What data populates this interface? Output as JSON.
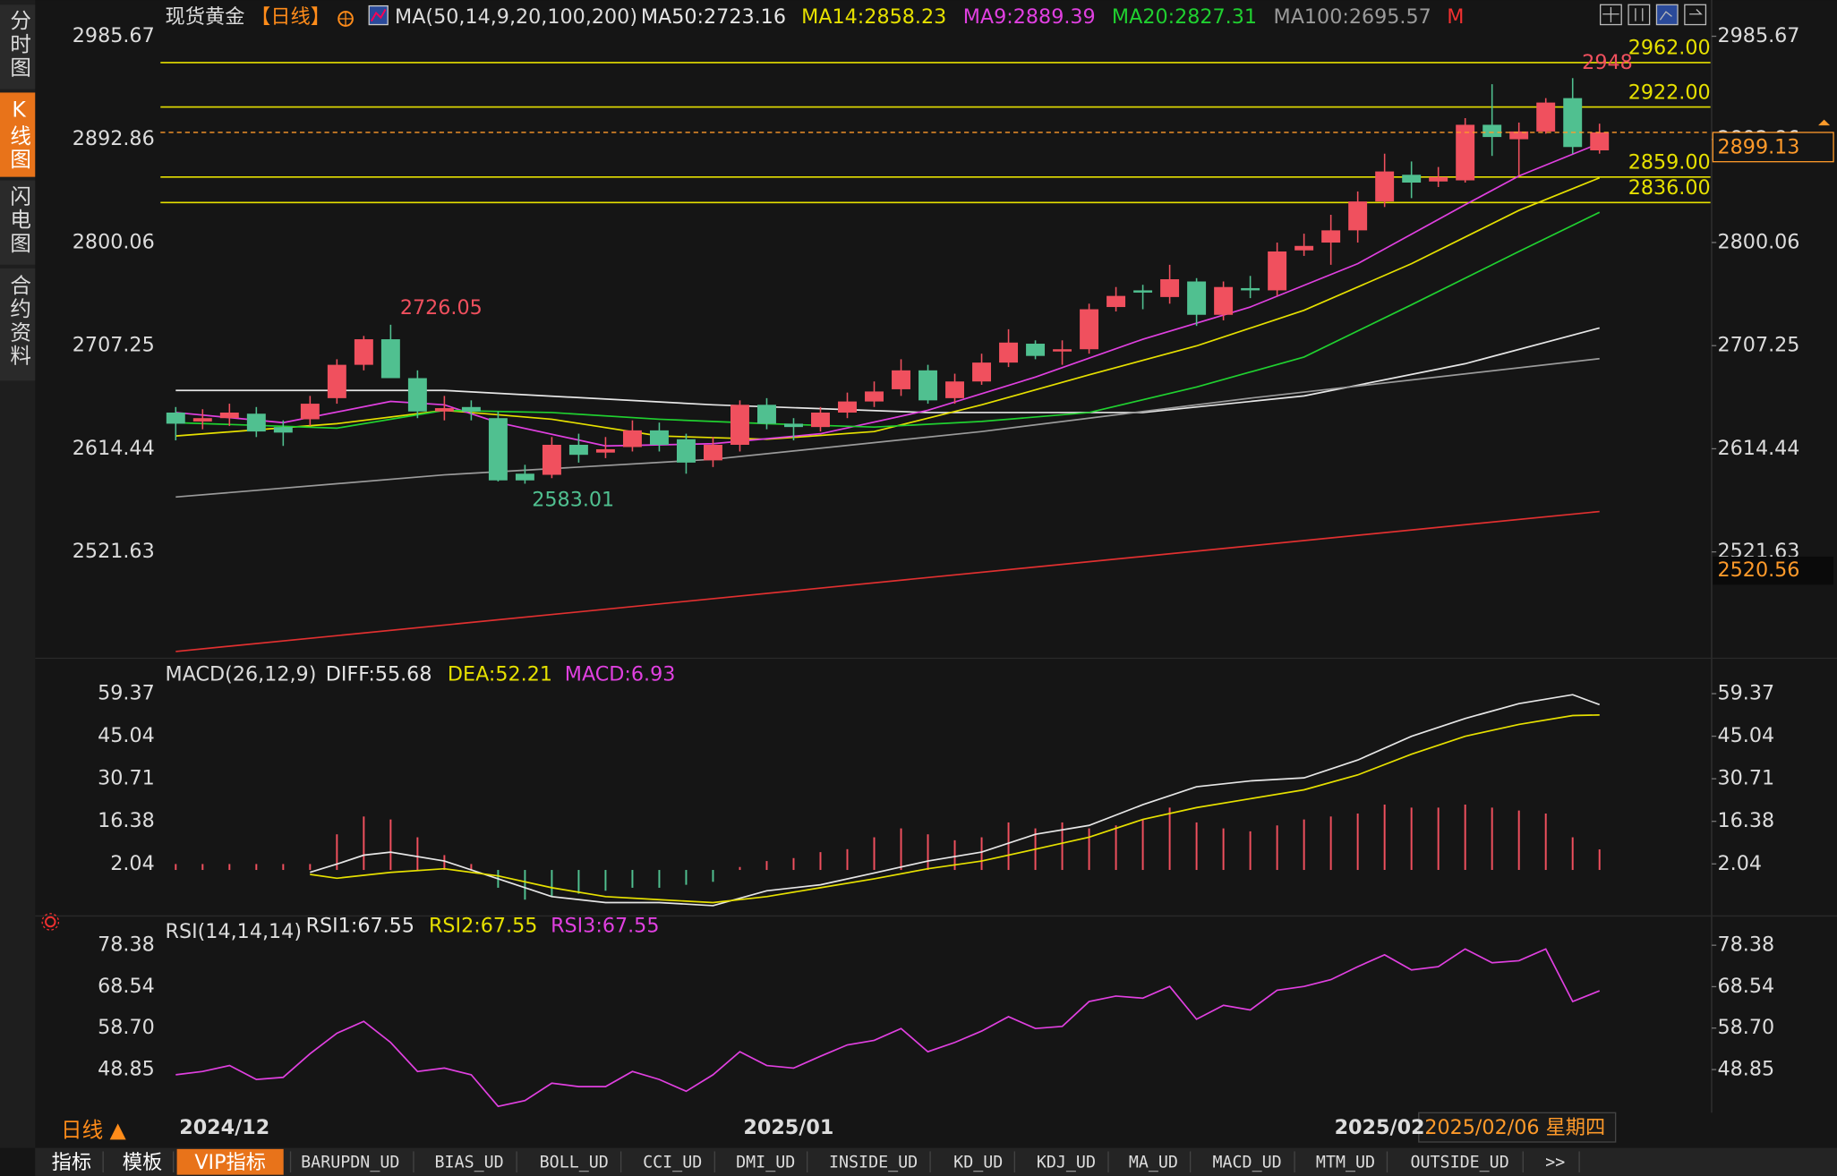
{
  "header": {
    "title": "现货黄金",
    "period": "【日线】",
    "indicator": "MA(50,14,9,20,100,200)",
    "flag": "M"
  },
  "sidebar": {
    "tabs": [
      "分时图",
      "K线图",
      "闪电图",
      "合约资料"
    ]
  },
  "footer": {
    "period": "日线 ▲",
    "crosshair_date": "2025/02/06 星期四"
  },
  "toolbar": {
    "tabs": [
      "指标",
      "模板",
      "VIP指标",
      "BARUPDN_UD",
      "BIAS_UD",
      "BOLL_UD",
      "CCI_UD",
      "DMI_UD",
      "INSIDE_UD",
      "KD_UD",
      "KDJ_UD",
      "MA_UD",
      "MACD_UD",
      "MTM_UD",
      "OUTSIDE_UD",
      ">>"
    ]
  },
  "chart_data": [
    {
      "type": "candlestick",
      "up_color": "#f0505e",
      "down_color": "#50c090",
      "categories": [
        "2024/12",
        null,
        null,
        null,
        null,
        null,
        null,
        null,
        null,
        null,
        null,
        null,
        null,
        null,
        null,
        null,
        null,
        null,
        null,
        null,
        null,
        "2025/01",
        null,
        null,
        null,
        null,
        null,
        null,
        null,
        null,
        null,
        null,
        null,
        null,
        null,
        null,
        null,
        null,
        null,
        null,
        null,
        null,
        null,
        "2025/02",
        null,
        null,
        null,
        null,
        null,
        null,
        null,
        null,
        null,
        null
      ],
      "open": [
        2647,
        2639,
        2642,
        2646,
        2634,
        2641,
        2660,
        2690,
        2713,
        2678,
        2648,
        2652,
        2642,
        2592,
        2591,
        2618,
        2611,
        2616,
        2631,
        2623,
        2604,
        2618,
        2654,
        2637,
        2634,
        2647,
        2657,
        2668,
        2685,
        2660,
        2675,
        2692,
        2709,
        2702,
        2704,
        2742,
        2757,
        2751,
        2765,
        2735,
        2759,
        2757,
        2793,
        2800,
        2811,
        2837,
        2861,
        2855,
        2856,
        2906,
        2893,
        2900,
        2930,
        2883
      ],
      "high": [
        2652,
        2650,
        2655,
        2652,
        2640,
        2662,
        2695,
        2716,
        2726.05,
        2685,
        2662,
        2658,
        2648,
        2600,
        2625,
        2628,
        2625,
        2640,
        2638,
        2628,
        2625,
        2658,
        2660,
        2642,
        2652,
        2665,
        2675,
        2695,
        2690,
        2682,
        2700,
        2722,
        2712,
        2712,
        2745,
        2760,
        2762,
        2780,
        2768,
        2765,
        2770,
        2800,
        2808,
        2825,
        2846,
        2880,
        2873,
        2868,
        2912,
        2942.53,
        2908,
        2930,
        2948,
        2907
      ],
      "low": [
        2622,
        2632,
        2635,
        2625,
        2617,
        2635,
        2655,
        2685,
        2678,
        2642,
        2640,
        2640,
        2585,
        2583.01,
        2588,
        2602,
        2606,
        2612,
        2612,
        2592,
        2598,
        2612,
        2632,
        2622,
        2630,
        2642,
        2652,
        2662,
        2655,
        2655,
        2672,
        2688,
        2695,
        2690,
        2700,
        2738,
        2740,
        2745,
        2725,
        2730,
        2750,
        2752,
        2788,
        2780,
        2800,
        2832,
        2840,
        2850,
        2854,
        2878,
        2860,
        2898,
        2880,
        2880
      ],
      "close": [
        2637,
        2642,
        2647,
        2630,
        2629,
        2655,
        2690,
        2713,
        2678,
        2648,
        2651,
        2648,
        2586,
        2586,
        2618,
        2609,
        2614,
        2631,
        2618,
        2602,
        2618,
        2654,
        2637,
        2634,
        2647,
        2657,
        2666,
        2685,
        2658,
        2675,
        2692,
        2710,
        2698,
        2704,
        2740,
        2752,
        2755,
        2767,
        2735,
        2760,
        2757,
        2792,
        2797,
        2811,
        2837,
        2864,
        2854,
        2859,
        2906,
        2895,
        2900,
        2926,
        2886,
        2899.13
      ],
      "series": [
        {
          "label": "MA50:2723.16",
          "color": "#e6e6e6",
          "x": [
            0,
            10,
            20,
            28,
            36,
            42,
            48,
            53
          ],
          "values": [
            2667,
            2667,
            2654,
            2647,
            2647,
            2662,
            2691,
            2723.16
          ]
        },
        {
          "label": "MA14:2858.23",
          "color": "#e6e000",
          "x": [
            0,
            6,
            10,
            14,
            18,
            22,
            26,
            30,
            34,
            38,
            42,
            46,
            50,
            53
          ],
          "values": [
            2626,
            2637,
            2649,
            2641,
            2626,
            2623,
            2630,
            2654,
            2681,
            2707,
            2739,
            2781,
            2829,
            2858.23
          ]
        },
        {
          "label": "MA9:2889.39",
          "color": "#e040e0",
          "x": [
            0,
            4,
            8,
            10,
            12,
            16,
            20,
            24,
            28,
            32,
            36,
            40,
            44,
            48,
            50,
            53
          ],
          "values": [
            2647,
            2638,
            2657,
            2654,
            2638,
            2617,
            2619,
            2628,
            2649,
            2679,
            2713,
            2742,
            2781,
            2834,
            2860,
            2889.39
          ]
        },
        {
          "label": "MA20:2827.31",
          "color": "#20d030",
          "x": [
            0,
            6,
            10,
            14,
            18,
            22,
            26,
            30,
            34,
            38,
            42,
            46,
            50,
            53
          ],
          "values": [
            2638,
            2633,
            2649,
            2647,
            2641,
            2637,
            2634,
            2639,
            2647,
            2670,
            2697,
            2744,
            2792,
            2827.31
          ]
        },
        {
          "label": "MA100:2695.57",
          "color": "#9a9a9a",
          "x": [
            0,
            10,
            20,
            30,
            40,
            53
          ],
          "values": [
            2571,
            2591,
            2605,
            2630,
            2660,
            2695.57
          ]
        },
        {
          "color": "#e03030",
          "x": [
            0,
            53
          ],
          "values": [
            2432,
            2558
          ]
        }
      ],
      "hlines": [
        {
          "value": 2962,
          "label": "2962.00"
        },
        {
          "value": 2922,
          "label": "2922.00"
        },
        {
          "value": 2859,
          "label": "2859.00"
        },
        {
          "value": 2836,
          "label": "2836.00"
        }
      ],
      "hline_color": "#e6e000",
      "last_color": "#ff9a2a",
      "crosshair_value": 2520.56,
      "ylim": [
        2428,
        3013
      ],
      "yticks": [
        2985.67,
        2892.86,
        2800.06,
        2707.25,
        2614.44,
        2521.63
      ],
      "grid": false
    },
    {
      "type": "macd",
      "title": "MACD(26,12,9)",
      "histogram": {
        "label": "MACD:6.93",
        "color": "#e040e0",
        "up_color": "#f0505e",
        "down_color": "#50c090",
        "values": [
          2,
          2,
          2,
          2,
          2,
          2,
          12,
          18,
          17,
          11,
          5,
          2,
          -6,
          -10,
          -9,
          -8,
          -7,
          -6,
          -6,
          -5,
          -4,
          1,
          3,
          4,
          6,
          7,
          11,
          14,
          12,
          10,
          11,
          16,
          14,
          16,
          14,
          15,
          17,
          21,
          16,
          14,
          13,
          15,
          17,
          18,
          19,
          22,
          21,
          21,
          22,
          21,
          20,
          19,
          11,
          6.93
        ]
      },
      "series": [
        {
          "label": "DIFF:55.68",
          "color": "#e6e6e6",
          "x": [
            5,
            6,
            7,
            8,
            10,
            12,
            14,
            16,
            18,
            20,
            22,
            24,
            26,
            28,
            30,
            32,
            34,
            36,
            38,
            40,
            42,
            44,
            46,
            48,
            50,
            52,
            53
          ],
          "values": [
            -0.8,
            2,
            5,
            6,
            3,
            -3,
            -9,
            -11,
            -11,
            -12,
            -7,
            -5,
            -1,
            3,
            6,
            12,
            15,
            22,
            28,
            30,
            31,
            37,
            45,
            51,
            56,
            59,
            55.68
          ]
        },
        {
          "label": "DEA:52.21",
          "color": "#e6e000",
          "x": [
            5,
            6,
            8,
            10,
            12,
            14,
            16,
            18,
            20,
            22,
            24,
            26,
            28,
            30,
            32,
            34,
            36,
            38,
            40,
            42,
            44,
            46,
            48,
            50,
            52,
            53
          ],
          "values": [
            -1.5,
            -2.8,
            -0.8,
            0.4,
            -2,
            -6,
            -9,
            -10,
            -11,
            -9,
            -6,
            -3,
            0.4,
            3,
            7,
            11,
            17,
            21,
            24,
            27,
            32,
            39,
            45,
            49,
            52,
            52.21
          ]
        }
      ],
      "ylim": [
        -14.7,
        70.1
      ],
      "yticks": [
        59.37,
        45.04,
        30.71,
        16.38,
        2.04
      ]
    },
    {
      "type": "rsi",
      "title": "RSI(14,14,14)",
      "legend": [
        {
          "label": "RSI1:67.55",
          "color": "#e6e6e6"
        },
        {
          "label": "RSI2:67.55",
          "color": "#e6e000"
        },
        {
          "label": "RSI3:67.55",
          "color": "#e040e0"
        }
      ],
      "series": [
        {
          "color": "#e040e0",
          "values": [
            47.6,
            48.4,
            49.8,
            46.5,
            47,
            52.6,
            57.5,
            60.3,
            55.3,
            48.4,
            49.2,
            47.6,
            40.1,
            41.5,
            45.6,
            44.8,
            44.8,
            48.4,
            46.5,
            43.7,
            47.6,
            53.1,
            49.8,
            49.2,
            52,
            54.7,
            55.8,
            58.6,
            53.1,
            55.3,
            58,
            61.4,
            58.6,
            59.1,
            65,
            66.3,
            65.8,
            68.6,
            60.8,
            64.1,
            63,
            67.7,
            68.6,
            70.2,
            73.3,
            76.1,
            72.5,
            73.3,
            77.5,
            74.2,
            74.7,
            77.5,
            65,
            67.55
          ]
        }
      ],
      "ylim": [
        38.6,
        84.5
      ],
      "yticks": [
        78.38,
        68.54,
        {
          "value": 58.7,
          "label": "58.70"
        },
        48.85
      ]
    }
  ]
}
